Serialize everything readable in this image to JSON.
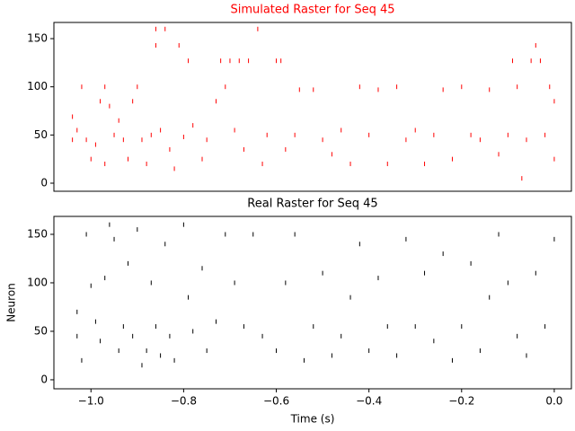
{
  "chart_data": [
    {
      "type": "scatter",
      "title": "Simulated Raster for Seq 45",
      "title_color": "#ff0000",
      "color": "#ff0000",
      "marker": "|",
      "xlim": [
        -1.08,
        0.037
      ],
      "ylim": [
        -8.4,
        166.8
      ],
      "yticks": [
        0,
        50,
        100,
        150
      ],
      "x": [
        -1.04,
        -1.04,
        -1.02,
        -1.03,
        -1.01,
        -1.0,
        -0.99,
        -0.98,
        -0.97,
        -0.97,
        -0.96,
        -0.95,
        -0.94,
        -0.93,
        -0.92,
        -0.91,
        -0.9,
        -0.89,
        -0.88,
        -0.87,
        -0.86,
        -0.86,
        -0.85,
        -0.84,
        -0.83,
        -0.82,
        -0.81,
        -0.8,
        -0.79,
        -0.78,
        -0.76,
        -0.75,
        -0.73,
        -0.72,
        -0.71,
        -0.7,
        -0.69,
        -0.68,
        -0.67,
        -0.66,
        -0.64,
        -0.63,
        -0.62,
        -0.6,
        -0.59,
        -0.58,
        -0.56,
        -0.55,
        -0.52,
        -0.5,
        -0.48,
        -0.46,
        -0.44,
        -0.42,
        -0.4,
        -0.38,
        -0.36,
        -0.34,
        -0.32,
        -0.3,
        -0.28,
        -0.26,
        -0.24,
        -0.22,
        -0.2,
        -0.18,
        -0.16,
        -0.14,
        -0.12,
        -0.1,
        -0.09,
        -0.08,
        -0.07,
        -0.06,
        -0.05,
        -0.04,
        -0.03,
        -0.02,
        -0.01,
        0.0,
        0.0
      ],
      "values": [
        69,
        45,
        100,
        55,
        45,
        25,
        40,
        85,
        100,
        20,
        80,
        50,
        65,
        45,
        25,
        85,
        100,
        45,
        20,
        50,
        160,
        143,
        55,
        160,
        35,
        15,
        143,
        48,
        127,
        60,
        25,
        45,
        85,
        127,
        100,
        127,
        55,
        127,
        35,
        127,
        160,
        20,
        50,
        127,
        127,
        35,
        50,
        97,
        97,
        45,
        30,
        55,
        20,
        100,
        50,
        97,
        20,
        100,
        45,
        55,
        20,
        50,
        97,
        25,
        100,
        50,
        45,
        97,
        30,
        50,
        127,
        100,
        5,
        45,
        127,
        143,
        127,
        50,
        100,
        25,
        85
      ]
    },
    {
      "type": "scatter",
      "title": "Real Raster for Seq 45",
      "title_color": "#000000",
      "color": "#000000",
      "marker": "|",
      "xlabel": "Time (s)",
      "ylabel": "Neuron",
      "xlim": [
        -1.08,
        0.037
      ],
      "ylim": [
        -9.3,
        168.5
      ],
      "yticks": [
        0,
        50,
        100,
        150
      ],
      "xticks": [
        {
          "value": -1.0,
          "label": "−1.0"
        },
        {
          "value": -0.8,
          "label": "−0.8"
        },
        {
          "value": -0.6,
          "label": "−0.6"
        },
        {
          "value": -0.4,
          "label": "−0.4"
        },
        {
          "value": -0.2,
          "label": "−0.2"
        },
        {
          "value": 0.0,
          "label": "0.0"
        }
      ],
      "x": [
        -1.03,
        -1.03,
        -1.02,
        -1.01,
        -1.0,
        -0.99,
        -0.98,
        -0.97,
        -0.96,
        -0.95,
        -0.94,
        -0.93,
        -0.92,
        -0.91,
        -0.9,
        -0.89,
        -0.88,
        -0.87,
        -0.86,
        -0.85,
        -0.84,
        -0.83,
        -0.82,
        -0.8,
        -0.79,
        -0.78,
        -0.76,
        -0.75,
        -0.73,
        -0.71,
        -0.69,
        -0.67,
        -0.65,
        -0.63,
        -0.6,
        -0.58,
        -0.56,
        -0.54,
        -0.52,
        -0.5,
        -0.48,
        -0.46,
        -0.44,
        -0.42,
        -0.4,
        -0.38,
        -0.36,
        -0.34,
        -0.32,
        -0.3,
        -0.28,
        -0.26,
        -0.24,
        -0.22,
        -0.2,
        -0.18,
        -0.16,
        -0.14,
        -0.12,
        -0.1,
        -0.08,
        -0.06,
        -0.04,
        -0.02,
        0.0
      ],
      "values": [
        70,
        45,
        20,
        150,
        97,
        60,
        40,
        105,
        160,
        145,
        30,
        55,
        120,
        45,
        155,
        15,
        30,
        100,
        55,
        25,
        140,
        45,
        20,
        160,
        85,
        50,
        115,
        30,
        60,
        150,
        100,
        55,
        150,
        45,
        30,
        100,
        150,
        20,
        55,
        110,
        25,
        45,
        85,
        140,
        30,
        105,
        55,
        25,
        145,
        55,
        110,
        40,
        130,
        20,
        55,
        120,
        30,
        85,
        150,
        100,
        45,
        25,
        110,
        55,
        145
      ]
    }
  ]
}
